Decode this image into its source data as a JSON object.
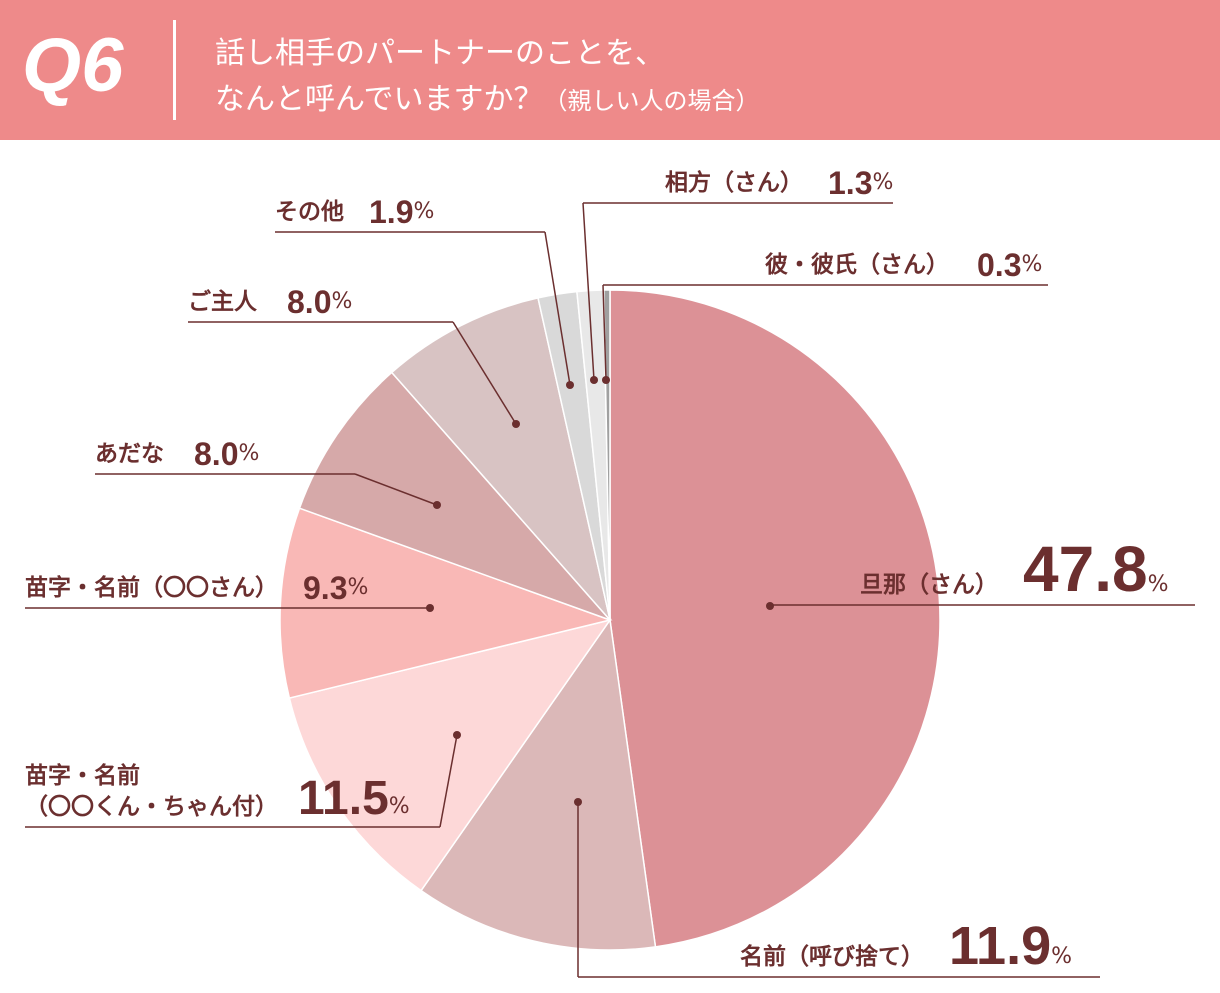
{
  "header": {
    "badge": "Q6",
    "title_lines": [
      "話し相手のパートナーのことを、",
      "なんと呼んでいますか？"
    ],
    "subtitle": "（親しい人の場合）"
  },
  "chart_data": {
    "type": "pie",
    "categories": [
      "旦那（さん）",
      "名前（呼び捨て）",
      "苗字・名前\n（〇〇くん・ちゃん付）",
      "苗字・名前（〇〇さん）",
      "あだな",
      "ご主人",
      "その他",
      "相方（さん）",
      "彼・彼氏（さん）"
    ],
    "values": [
      47.8,
      11.9,
      11.5,
      9.3,
      8.0,
      8.0,
      1.9,
      1.3,
      0.3
    ],
    "value_labels": [
      "47.8",
      "11.9",
      "11.5",
      "9.3",
      "8.0",
      "8.0",
      "1.9",
      "1.3",
      "0.3"
    ],
    "unit": "%",
    "colors": [
      "#dc9196",
      "#dbb8b8",
      "#fdd8d8",
      "#f9b8b6",
      "#d6a9a9",
      "#d8c3c3",
      "#d9d9d9",
      "#e8e8e8",
      "#a0a0a0"
    ]
  }
}
